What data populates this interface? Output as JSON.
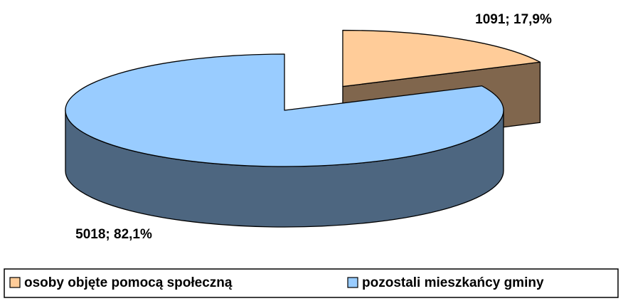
{
  "chart_data": {
    "type": "pie",
    "categories": [
      "osoby objęte pomocą społeczną",
      "pozostali mieszkańcy gminy"
    ],
    "values": [
      1091,
      5018
    ],
    "value_labels": [
      "1091; 17,9%",
      "5018; 82,1%"
    ],
    "colors": [
      "#FFCC99",
      "#99CCFF"
    ],
    "legend": "bottom"
  }
}
